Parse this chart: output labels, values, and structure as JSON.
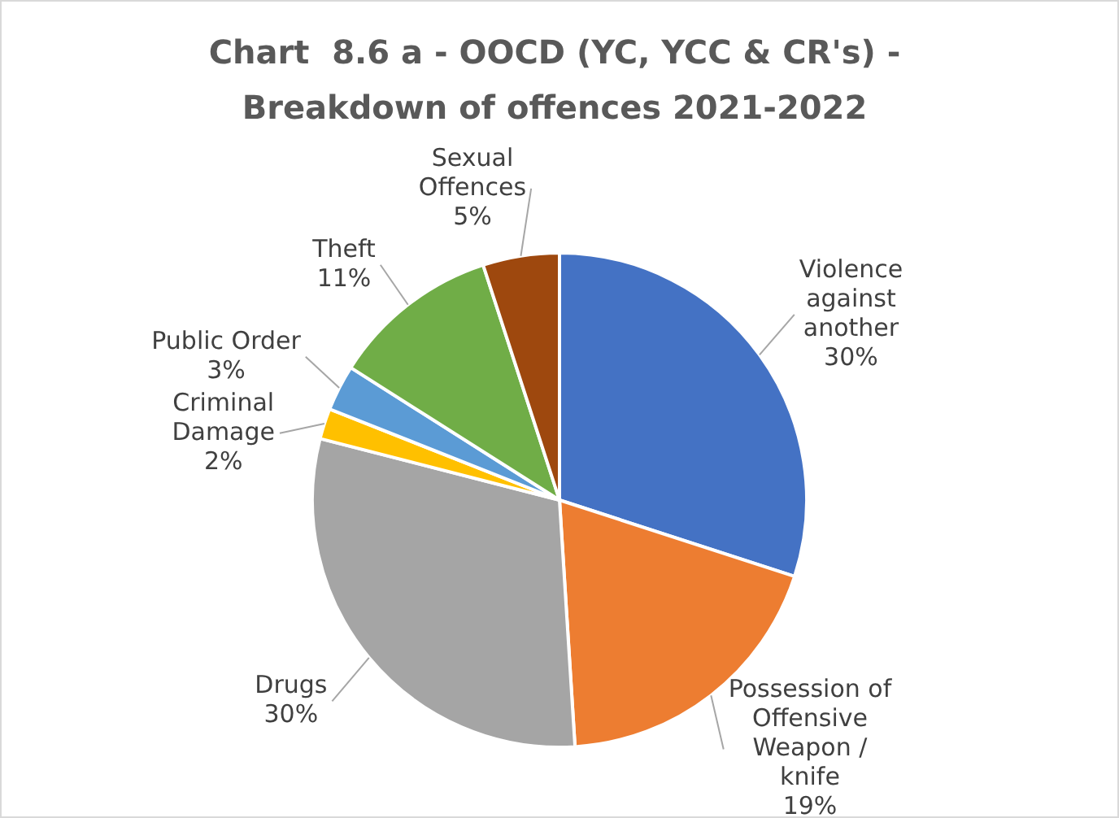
{
  "chart_data": {
    "type": "pie",
    "title": "Chart  8.6 a - OOCD (YC, YCC & CR's) - Breakdown of offences 2021-2022",
    "categories": [
      "Violence against another",
      "Possession of Offensive Weapon / knife",
      "Drugs",
      "Criminal Damage",
      "Public Order",
      "Theft",
      "Sexual Offences"
    ],
    "values": [
      30,
      19,
      30,
      2,
      3,
      11,
      5
    ],
    "colors": [
      "#4472c4",
      "#ed7d31",
      "#a5a5a5",
      "#ffc000",
      "#5b9bd5",
      "#70ad47",
      "#9e480e"
    ],
    "value_labels": [
      "30%",
      "19%",
      "30%",
      "2%",
      "3%",
      "11%",
      "5%"
    ],
    "legend": false
  }
}
